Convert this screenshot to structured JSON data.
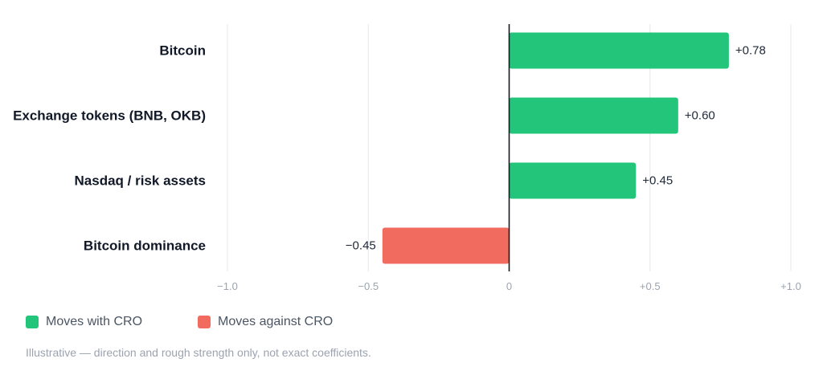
{
  "chart_data": {
    "type": "bar",
    "orientation": "horizontal",
    "categories": [
      "Bitcoin",
      "Exchange tokens (BNB, OKB)",
      "Nasdaq / risk assets",
      "Bitcoin dominance"
    ],
    "values": [
      0.78,
      0.6,
      0.45,
      -0.45
    ],
    "value_labels": [
      "+0.78",
      "+0.60",
      "+0.45",
      "−0.45"
    ],
    "xlim": [
      -1.0,
      1.0
    ],
    "xticks": [
      -1.0,
      -0.5,
      0,
      0.5,
      1.0
    ],
    "xtick_labels": [
      "−1.0",
      "−0.5",
      "0",
      "+0.5",
      "+1.0"
    ],
    "grid": true,
    "legend_position": "bottom-left",
    "positive_color": "#22c57a",
    "negative_color": "#f26b5f",
    "title": "",
    "xlabel": "",
    "ylabel": ""
  },
  "legend": {
    "items": [
      {
        "label": "Moves with CRO",
        "color": "#22c57a"
      },
      {
        "label": "Moves against CRO",
        "color": "#f26b5f"
      }
    ]
  },
  "footnote": "Illustrative — direction and rough strength only, not exact coefficients."
}
